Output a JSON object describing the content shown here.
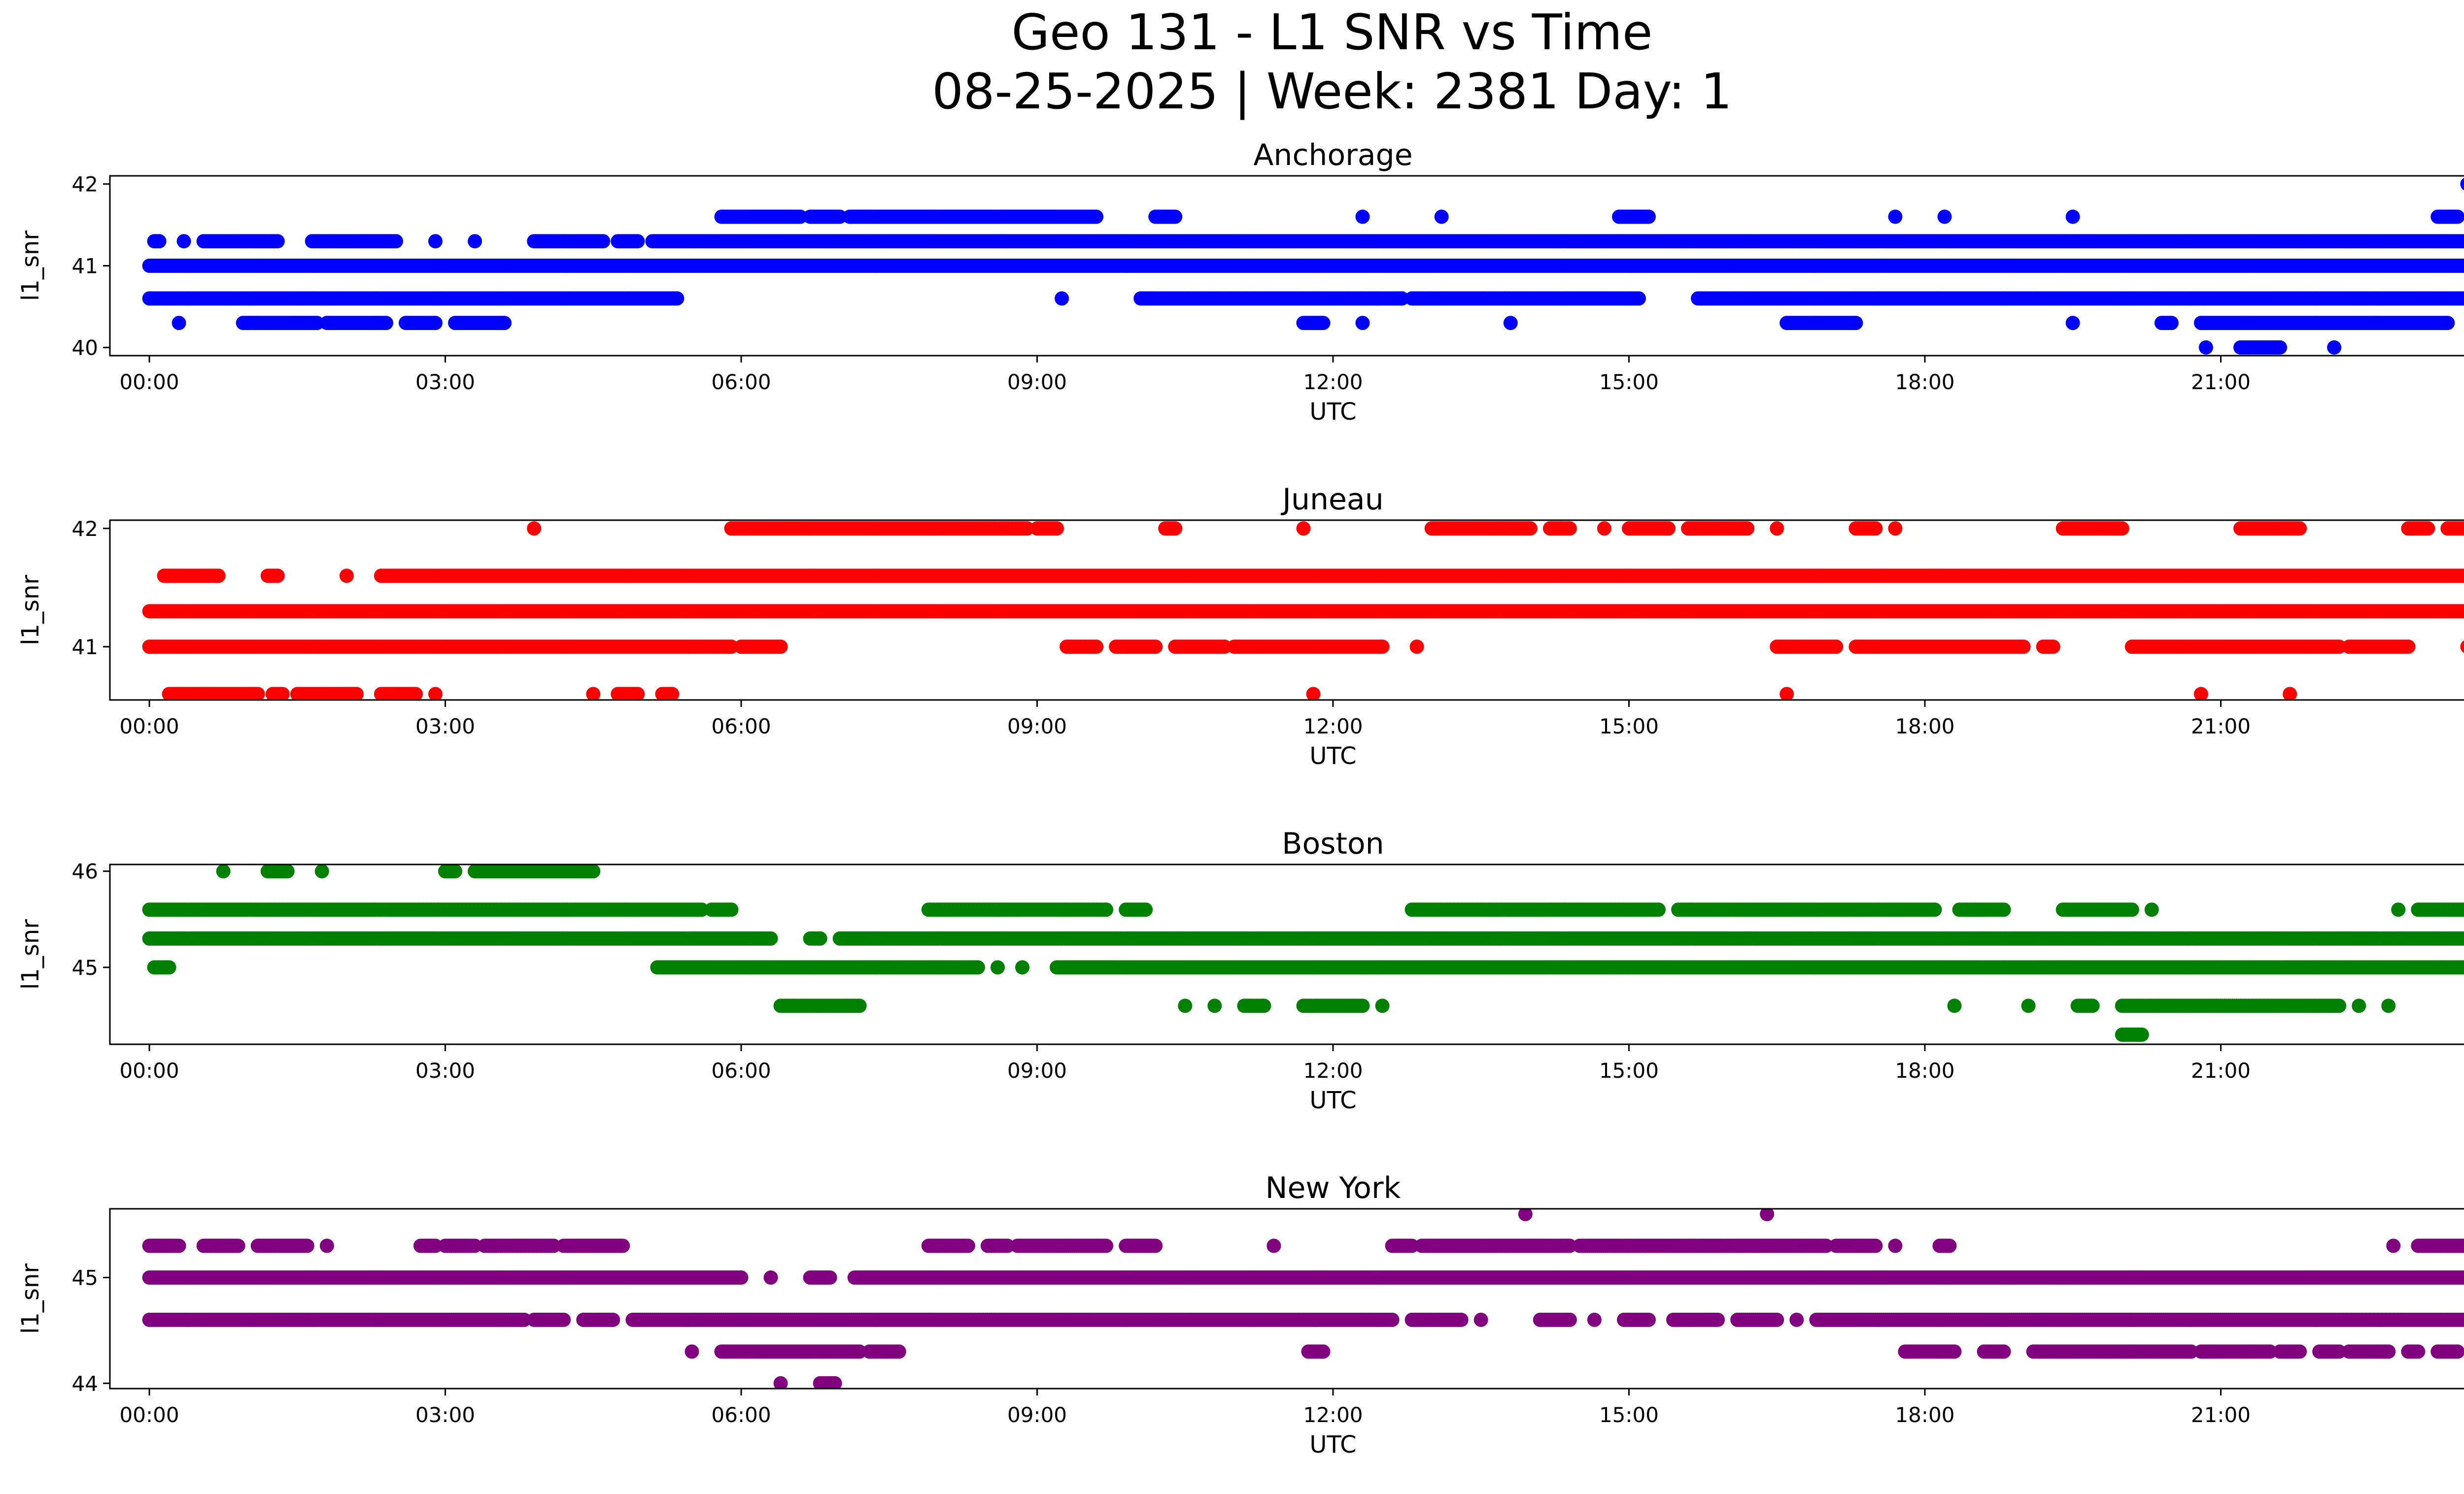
{
  "title_line1": "Geo 131 - L1 SNR vs Time",
  "title_line2": "08-25-2025 | Week: 2381 Day: 1",
  "chart_data": [
    {
      "type": "scatter",
      "title": "Anchorage",
      "xlabel": "UTC",
      "ylabel": "l1_snr",
      "color": "#0000ff",
      "xlim_hours": [
        -0.4,
        24.4
      ],
      "ylim": [
        39.9,
        42.1
      ],
      "yticks": [
        "40",
        "41",
        "42"
      ],
      "xticks": [
        "00:00",
        "03:00",
        "06:00",
        "09:00",
        "12:00",
        "15:00",
        "18:00",
        "21:00",
        "00:00"
      ],
      "bands": [
        {
          "y": 41.0,
          "segments": [
            [
              0.0,
              24.0
            ]
          ]
        },
        {
          "y": 40.6,
          "segments": [
            [
              0.0,
              5.35
            ],
            [
              9.25,
              9.25
            ],
            [
              10.05,
              12.7
            ],
            [
              12.8,
              15.1
            ],
            [
              15.7,
              24.0
            ]
          ]
        },
        {
          "y": 41.3,
          "segments": [
            [
              0.05,
              0.1
            ],
            [
              0.35,
              0.35
            ],
            [
              0.55,
              1.3
            ],
            [
              1.65,
              2.5
            ],
            [
              2.9,
              2.9
            ],
            [
              3.3,
              3.3
            ],
            [
              3.9,
              4.6
            ],
            [
              4.75,
              4.95
            ],
            [
              5.1,
              24.0
            ]
          ]
        },
        {
          "y": 41.6,
          "segments": [
            [
              5.8,
              6.6
            ],
            [
              6.7,
              7.0
            ],
            [
              7.1,
              9.6
            ],
            [
              10.2,
              10.4
            ],
            [
              12.3,
              12.3
            ],
            [
              13.1,
              13.1
            ],
            [
              14.9,
              15.2
            ],
            [
              17.7,
              17.7
            ],
            [
              18.2,
              18.2
            ],
            [
              19.5,
              19.5
            ],
            [
              23.2,
              23.4
            ],
            [
              23.8,
              23.8
            ]
          ]
        },
        {
          "y": 40.3,
          "segments": [
            [
              0.3,
              0.3
            ],
            [
              0.95,
              1.7
            ],
            [
              1.8,
              2.4
            ],
            [
              2.6,
              2.9
            ],
            [
              3.1,
              3.6
            ],
            [
              11.7,
              11.9
            ],
            [
              12.3,
              12.3
            ],
            [
              13.8,
              13.8
            ],
            [
              16.6,
              17.3
            ],
            [
              19.5,
              19.5
            ],
            [
              20.4,
              20.5
            ],
            [
              20.8,
              23.3
            ],
            [
              23.6,
              23.8
            ]
          ]
        },
        {
          "y": 40.0,
          "segments": [
            [
              20.85,
              20.85
            ],
            [
              21.2,
              21.6
            ],
            [
              22.15,
              22.15
            ],
            [
              23.7,
              23.7
            ]
          ]
        },
        {
          "y": 42.0,
          "segments": [
            [
              23.5,
              23.5
            ]
          ]
        }
      ]
    },
    {
      "type": "scatter",
      "title": "Juneau",
      "xlabel": "UTC",
      "ylabel": "l1_snr",
      "color": "#ff0000",
      "xlim_hours": [
        -0.4,
        24.4
      ],
      "ylim": [
        40.55,
        42.07
      ],
      "yticks": [
        "41",
        "42"
      ],
      "xticks": [
        "00:00",
        "03:00",
        "06:00",
        "09:00",
        "12:00",
        "15:00",
        "18:00",
        "21:00",
        "00:00"
      ],
      "bands": [
        {
          "y": 41.3,
          "segments": [
            [
              0.0,
              24.0
            ]
          ]
        },
        {
          "y": 41.6,
          "segments": [
            [
              0.15,
              0.7
            ],
            [
              1.2,
              1.3
            ],
            [
              2.0,
              2.0
            ],
            [
              2.35,
              24.0
            ]
          ]
        },
        {
          "y": 41.0,
          "segments": [
            [
              0.0,
              5.9
            ],
            [
              6.0,
              6.4
            ],
            [
              9.3,
              9.6
            ],
            [
              9.8,
              10.2
            ],
            [
              10.4,
              10.9
            ],
            [
              11.0,
              12.5
            ],
            [
              12.85,
              12.85
            ],
            [
              16.5,
              17.1
            ],
            [
              17.3,
              19.0
            ],
            [
              19.2,
              19.3
            ],
            [
              20.1,
              22.2
            ],
            [
              22.3,
              22.9
            ],
            [
              23.5,
              23.7
            ],
            [
              23.85,
              24.0
            ]
          ]
        },
        {
          "y": 40.6,
          "segments": [
            [
              0.2,
              1.1
            ],
            [
              1.25,
              1.35
            ],
            [
              1.5,
              2.1
            ],
            [
              2.35,
              2.7
            ],
            [
              2.9,
              2.9
            ],
            [
              4.5,
              4.5
            ],
            [
              4.75,
              4.95
            ],
            [
              5.2,
              5.3
            ],
            [
              11.8,
              11.8
            ],
            [
              16.6,
              16.6
            ],
            [
              20.8,
              20.8
            ],
            [
              21.7,
              21.7
            ]
          ]
        },
        {
          "y": 42.0,
          "segments": [
            [
              3.9,
              3.9
            ],
            [
              5.9,
              8.9
            ],
            [
              9.0,
              9.2
            ],
            [
              10.3,
              10.4
            ],
            [
              11.7,
              11.7
            ],
            [
              13.0,
              14.0
            ],
            [
              14.2,
              14.4
            ],
            [
              14.75,
              14.75
            ],
            [
              15.0,
              15.4
            ],
            [
              15.6,
              16.2
            ],
            [
              16.5,
              16.5
            ],
            [
              17.3,
              17.5
            ],
            [
              17.7,
              17.7
            ],
            [
              19.4,
              20.0
            ],
            [
              21.2,
              21.8
            ],
            [
              22.9,
              23.1
            ],
            [
              23.3,
              23.8
            ]
          ]
        }
      ]
    },
    {
      "type": "scatter",
      "title": "Boston",
      "xlabel": "UTC",
      "ylabel": "l1_snr",
      "color": "#008000",
      "xlim_hours": [
        -0.4,
        24.4
      ],
      "ylim": [
        44.2,
        46.07
      ],
      "yticks": [
        "45",
        "46"
      ],
      "xticks": [
        "00:00",
        "03:00",
        "06:00",
        "09:00",
        "12:00",
        "15:00",
        "18:00",
        "21:00",
        "00:00"
      ],
      "bands": [
        {
          "y": 45.3,
          "segments": [
            [
              0.0,
              6.3
            ],
            [
              6.7,
              6.8
            ],
            [
              7.0,
              24.0
            ]
          ]
        },
        {
          "y": 45.6,
          "segments": [
            [
              0.0,
              5.6
            ],
            [
              5.7,
              5.9
            ],
            [
              7.9,
              9.7
            ],
            [
              9.9,
              10.1
            ],
            [
              12.8,
              15.3
            ],
            [
              15.5,
              18.1
            ],
            [
              18.35,
              18.8
            ],
            [
              19.4,
              20.1
            ],
            [
              20.3,
              20.3
            ],
            [
              22.8,
              22.8
            ],
            [
              23.0,
              24.0
            ]
          ]
        },
        {
          "y": 45.0,
          "segments": [
            [
              0.05,
              0.2
            ],
            [
              5.15,
              8.4
            ],
            [
              8.6,
              8.6
            ],
            [
              8.85,
              8.85
            ],
            [
              9.2,
              23.5
            ]
          ]
        },
        {
          "y": 44.6,
          "segments": [
            [
              6.4,
              7.2
            ],
            [
              10.5,
              10.5
            ],
            [
              10.8,
              10.8
            ],
            [
              11.1,
              11.3
            ],
            [
              11.7,
              12.3
            ],
            [
              12.5,
              12.5
            ],
            [
              18.3,
              18.3
            ],
            [
              19.05,
              19.05
            ],
            [
              19.55,
              19.7
            ],
            [
              20.0,
              22.2
            ],
            [
              22.4,
              22.4
            ],
            [
              22.7,
              22.7
            ]
          ]
        },
        {
          "y": 46.0,
          "segments": [
            [
              0.75,
              0.75
            ],
            [
              1.2,
              1.4
            ],
            [
              1.75,
              1.75
            ],
            [
              3.0,
              3.1
            ],
            [
              3.3,
              4.5
            ]
          ]
        },
        {
          "y": 44.3,
          "segments": [
            [
              20.0,
              20.2
            ]
          ]
        }
      ]
    },
    {
      "type": "scatter",
      "title": "New York",
      "xlabel": "UTC",
      "ylabel": "l1_snr",
      "color": "#800080",
      "xlim_hours": [
        -0.4,
        24.4
      ],
      "ylim": [
        43.95,
        45.65
      ],
      "yticks": [
        "44",
        "45"
      ],
      "xticks": [
        "00:00",
        "03:00",
        "06:00",
        "09:00",
        "12:00",
        "15:00",
        "18:00",
        "21:00",
        "00:00"
      ],
      "bands": [
        {
          "y": 45.0,
          "segments": [
            [
              0.0,
              6.0
            ],
            [
              6.3,
              6.3
            ],
            [
              6.7,
              6.9
            ],
            [
              7.15,
              24.0
            ]
          ]
        },
        {
          "y": 44.6,
          "segments": [
            [
              0.0,
              3.8
            ],
            [
              3.9,
              4.2
            ],
            [
              4.4,
              4.7
            ],
            [
              4.9,
              12.6
            ],
            [
              12.8,
              13.3
            ],
            [
              13.5,
              13.5
            ],
            [
              14.1,
              14.4
            ],
            [
              14.65,
              14.65
            ],
            [
              14.95,
              15.2
            ],
            [
              15.45,
              15.9
            ],
            [
              16.1,
              16.5
            ],
            [
              16.7,
              16.7
            ],
            [
              16.9,
              24.0
            ]
          ]
        },
        {
          "y": 45.3,
          "segments": [
            [
              0.0,
              0.3
            ],
            [
              0.55,
              0.9
            ],
            [
              1.1,
              1.6
            ],
            [
              1.8,
              1.8
            ],
            [
              2.75,
              2.9
            ],
            [
              3.0,
              3.3
            ],
            [
              3.4,
              4.1
            ],
            [
              4.2,
              4.8
            ],
            [
              7.9,
              8.3
            ],
            [
              8.5,
              8.7
            ],
            [
              8.8,
              9.7
            ],
            [
              9.9,
              10.2
            ],
            [
              11.4,
              11.4
            ],
            [
              12.6,
              12.8
            ],
            [
              12.9,
              14.4
            ],
            [
              14.5,
              17.0
            ],
            [
              17.1,
              17.5
            ],
            [
              17.7,
              17.7
            ],
            [
              18.15,
              18.25
            ],
            [
              22.75,
              22.75
            ],
            [
              23.0,
              24.0
            ]
          ]
        },
        {
          "y": 44.3,
          "segments": [
            [
              5.5,
              5.5
            ],
            [
              5.8,
              7.2
            ],
            [
              7.3,
              7.6
            ],
            [
              11.75,
              11.9
            ],
            [
              17.8,
              18.3
            ],
            [
              18.6,
              18.8
            ],
            [
              19.1,
              20.7
            ],
            [
              20.8,
              21.5
            ],
            [
              21.6,
              21.8
            ],
            [
              22.0,
              22.2
            ],
            [
              22.3,
              22.7
            ],
            [
              22.9,
              23.0
            ],
            [
              23.2,
              23.4
            ]
          ]
        },
        {
          "y": 45.6,
          "segments": [
            [
              13.95,
              13.95
            ],
            [
              16.4,
              16.4
            ]
          ]
        },
        {
          "y": 44.0,
          "segments": [
            [
              6.4,
              6.4
            ],
            [
              6.8,
              6.95
            ]
          ]
        }
      ]
    }
  ]
}
